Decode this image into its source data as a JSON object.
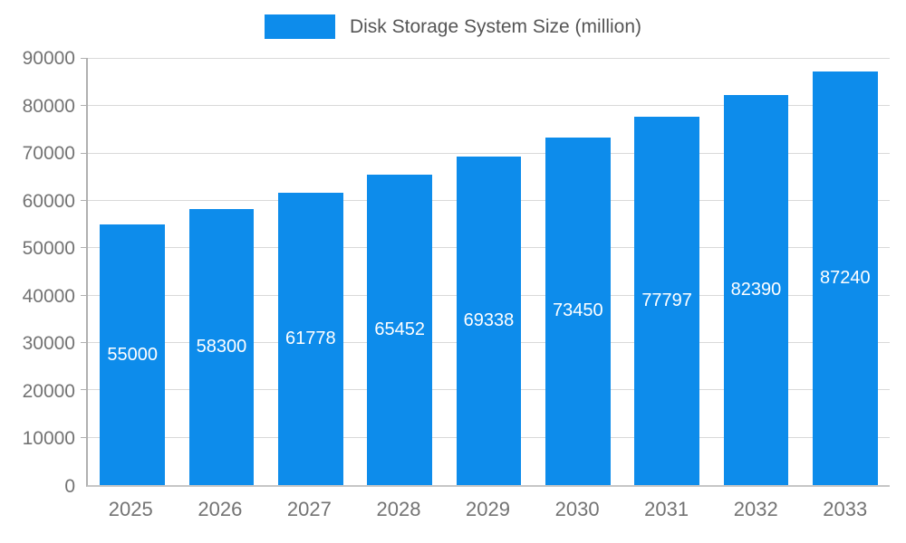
{
  "chart_data": {
    "type": "bar",
    "title": "Disk Storage System Size (million)",
    "categories": [
      "2025",
      "2026",
      "2027",
      "2028",
      "2029",
      "2030",
      "2031",
      "2032",
      "2033"
    ],
    "values": [
      55000,
      58300,
      61778,
      65452,
      69338,
      73450,
      77797,
      82390,
      87240
    ],
    "series": [
      {
        "name": "Disk Storage System Size (million)",
        "values": [
          55000,
          58300,
          61778,
          65452,
          69338,
          73450,
          77797,
          82390,
          87240
        ]
      }
    ],
    "xlabel": "",
    "ylabel": "",
    "ylim": [
      0,
      90000
    ],
    "yticks": [
      0,
      10000,
      20000,
      30000,
      40000,
      50000,
      60000,
      70000,
      80000,
      90000
    ],
    "grid": true,
    "legend_position": "top",
    "bar_color": "#0d8ceb",
    "bar_label_color": "#ffffff",
    "axis_text_color": "#737373"
  }
}
